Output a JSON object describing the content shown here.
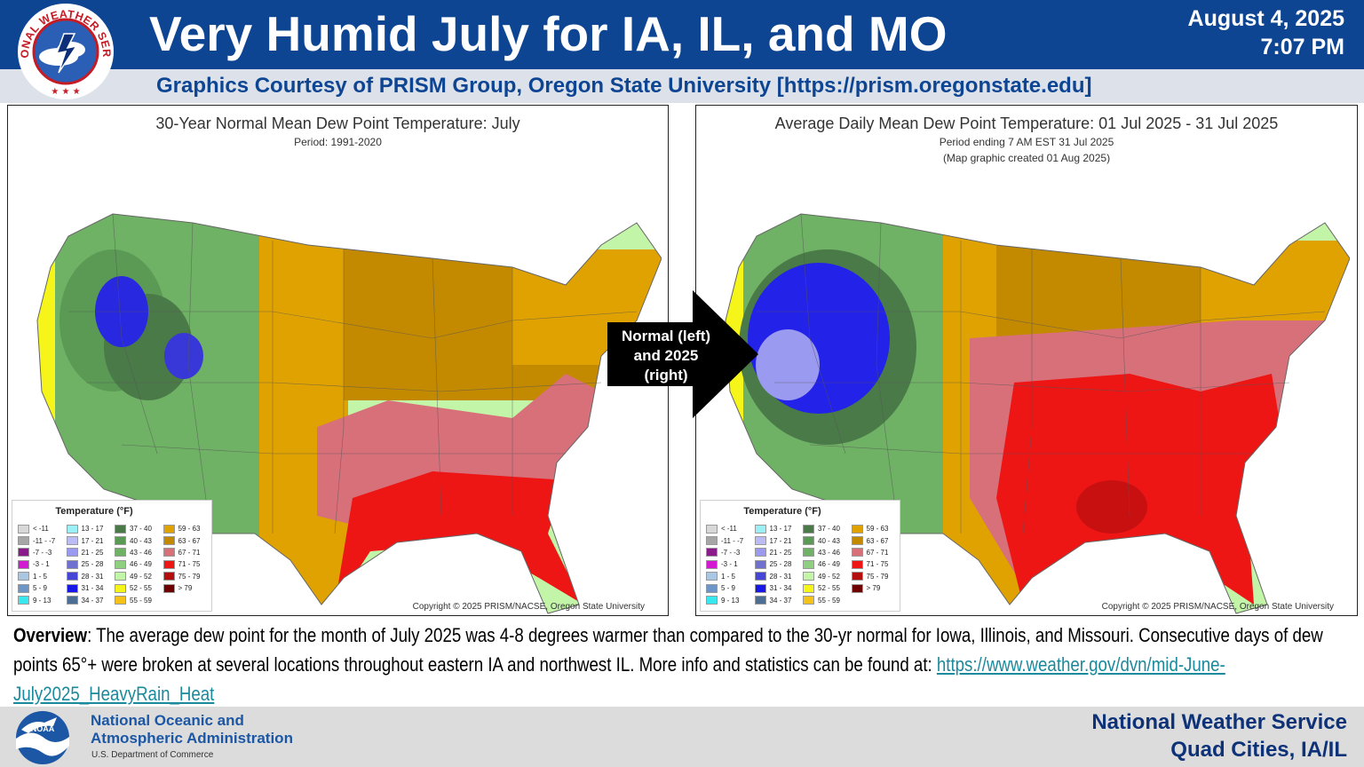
{
  "header": {
    "title": "Very Humid July for IA, IL, and MO",
    "date": "August 4, 2025",
    "time": "7:07 PM",
    "courtesy": "Graphics Courtesy of PRISM Group, Oregon State University [https://prism.oregonstate.edu]",
    "logo_text": "NATIONAL WEATHER SERVICE",
    "logo_icon": "nws-logo-icon"
  },
  "left_map": {
    "title": "30-Year Normal Mean Dew Point Temperature: July",
    "period": "Period: 1991-2020",
    "copyright": "Copyright © 2025 PRISM/NACSE, Oregon State University"
  },
  "right_map": {
    "title": "Average Daily Mean Dew Point Temperature: 01 Jul 2025 - 31 Jul 2025",
    "period": "Period ending 7 AM EST 31 Jul 2025",
    "created": "(Map graphic created 01 Aug 2025)",
    "copyright": "Copyright © 2025 PRISM/NACSE, Oregon State University"
  },
  "legend": {
    "title": "Temperature (°F)",
    "columns": [
      [
        {
          "label": "< -11",
          "color": "#d8d8d8"
        },
        {
          "label": "-11 - -7",
          "color": "#a6a6a6"
        },
        {
          "label": "-7 - -3",
          "color": "#8b1a8b"
        },
        {
          "label": "-3 - 1",
          "color": "#d21ad2"
        },
        {
          "label": "1 - 5",
          "color": "#a9c6e2"
        },
        {
          "label": "5 - 9",
          "color": "#6c95c8"
        },
        {
          "label": "9 - 13",
          "color": "#38e8ee"
        }
      ],
      [
        {
          "label": "13 - 17",
          "color": "#9af0f5"
        },
        {
          "label": "17 - 21",
          "color": "#bcbcf5"
        },
        {
          "label": "21 - 25",
          "color": "#9a9af0"
        },
        {
          "label": "25 - 28",
          "color": "#7070d0"
        },
        {
          "label": "28 - 31",
          "color": "#4545d8"
        },
        {
          "label": "31 - 34",
          "color": "#1717e8"
        },
        {
          "label": "34 - 37",
          "color": "#4c6e94"
        }
      ],
      [
        {
          "label": "37 - 40",
          "color": "#4a7a48"
        },
        {
          "label": "40 - 43",
          "color": "#5a9a55"
        },
        {
          "label": "43 - 46",
          "color": "#6fb165"
        },
        {
          "label": "46 - 49",
          "color": "#8fcf80"
        },
        {
          "label": "49 - 52",
          "color": "#c3f5a8"
        },
        {
          "label": "52 - 55",
          "color": "#f5f51a"
        },
        {
          "label": "55 - 59",
          "color": "#f5c21a"
        }
      ],
      [
        {
          "label": "59 - 63",
          "color": "#dfa200"
        },
        {
          "label": "63 - 67",
          "color": "#c38a00"
        },
        {
          "label": "67 - 71",
          "color": "#d8707a"
        },
        {
          "label": "71 - 75",
          "color": "#ee1515"
        },
        {
          "label": "75 - 79",
          "color": "#b40f0f"
        },
        {
          "label": "> 79",
          "color": "#6e0000"
        }
      ]
    ]
  },
  "arrow": {
    "text_line1": "Normal (left)",
    "text_line2": "and 2025",
    "text_line3": "(right)"
  },
  "overview": {
    "label": "Overview",
    "text": ":  The average dew point for the month of July 2025 was 4-8 degrees warmer than compared to the 30-yr normal for Iowa, Illinois, and Missouri. Consecutive days of dew points 65°+ were broken at several locations throughout eastern IA and northwest IL.  More info and statistics can be found at: ",
    "link": "https://www.weather.gov/dvn/mid-June-July2025_HeavyRain_Heat"
  },
  "footer": {
    "noaa_line1": "National Oceanic and",
    "noaa_line2": "Atmospheric Administration",
    "noaa_dept": "U.S. Department of Commerce",
    "office_line1": "National Weather Service",
    "office_line2": "Quad Cities, IA/IL",
    "noaa_logo_text": "NOAA"
  }
}
